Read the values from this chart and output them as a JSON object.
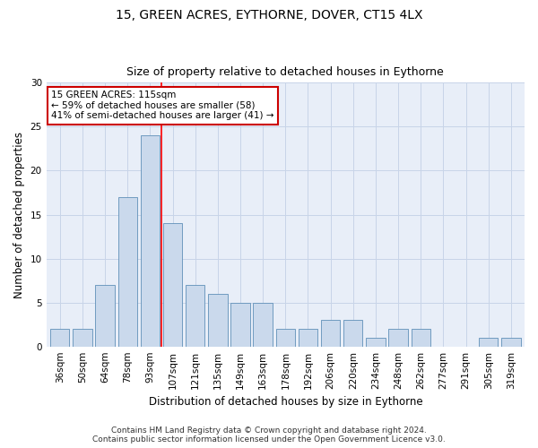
{
  "title_line1": "15, GREEN ACRES, EYTHORNE, DOVER, CT15 4LX",
  "title_line2": "Size of property relative to detached houses in Eythorne",
  "xlabel": "Distribution of detached houses by size in Eythorne",
  "ylabel": "Number of detached properties",
  "categories": [
    "36sqm",
    "50sqm",
    "64sqm",
    "78sqm",
    "93sqm",
    "107sqm",
    "121sqm",
    "135sqm",
    "149sqm",
    "163sqm",
    "178sqm",
    "192sqm",
    "206sqm",
    "220sqm",
    "234sqm",
    "248sqm",
    "262sqm",
    "277sqm",
    "291sqm",
    "305sqm",
    "319sqm"
  ],
  "values": [
    2,
    2,
    7,
    17,
    24,
    14,
    7,
    6,
    5,
    5,
    2,
    2,
    3,
    3,
    1,
    2,
    2,
    0,
    0,
    1,
    1
  ],
  "bar_color": "#cad9ec",
  "bar_edge_color": "#6090b8",
  "red_line_x": 4.5,
  "ylim": [
    0,
    30
  ],
  "yticks": [
    0,
    5,
    10,
    15,
    20,
    25,
    30
  ],
  "annotation_text": "15 GREEN ACRES: 115sqm\n← 59% of detached houses are smaller (58)\n41% of semi-detached houses are larger (41) →",
  "annotation_box_color": "#ffffff",
  "annotation_box_edge_color": "#cc0000",
  "footer_line1": "Contains HM Land Registry data © Crown copyright and database right 2024.",
  "footer_line2": "Contains public sector information licensed under the Open Government Licence v3.0.",
  "bg_color": "#ffffff",
  "plot_bg_color": "#e8eef8",
  "grid_color": "#c8d4e8",
  "title_fontsize": 10,
  "subtitle_fontsize": 9,
  "tick_fontsize": 7.5,
  "ylabel_fontsize": 8.5,
  "xlabel_fontsize": 8.5,
  "annotation_fontsize": 7.5,
  "footer_fontsize": 6.5
}
